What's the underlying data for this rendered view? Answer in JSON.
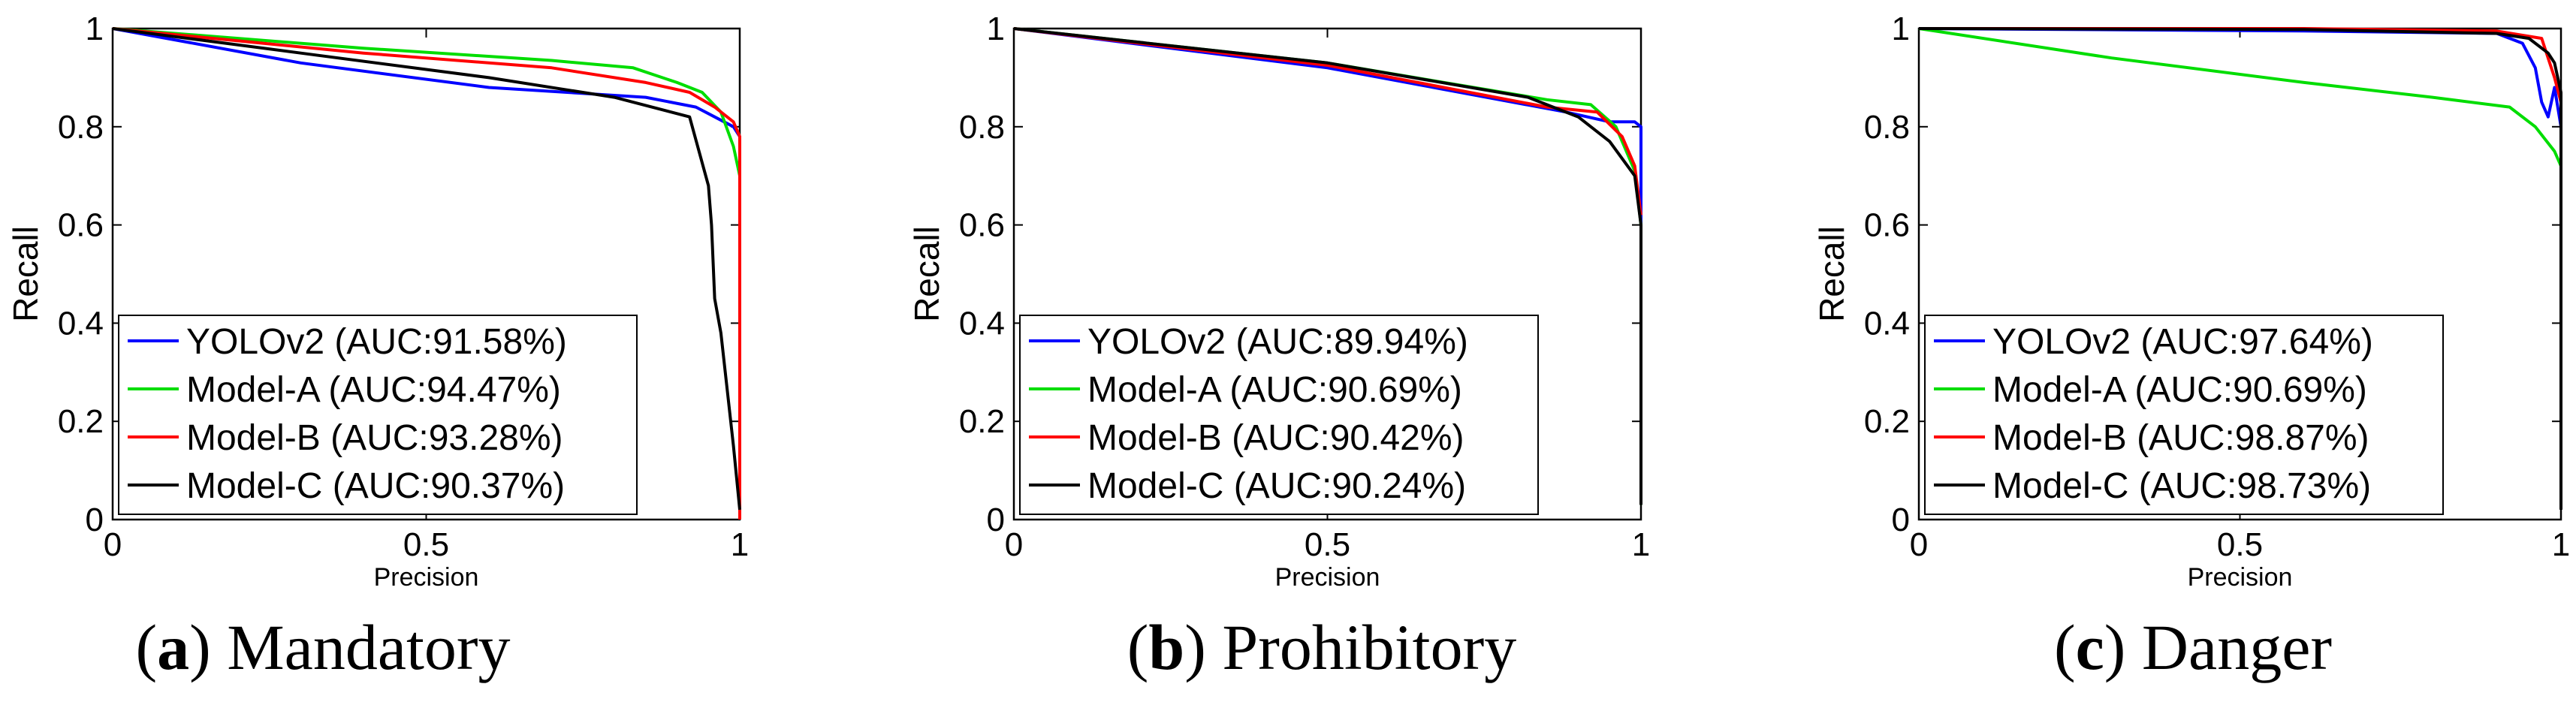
{
  "chart_data": [
    {
      "type": "line",
      "caption": {
        "letter": "a",
        "title": "Mandatory"
      },
      "xlabel": "Precision",
      "ylabel": "Recall",
      "xlim": [
        0,
        1
      ],
      "ylim": [
        0,
        1
      ],
      "xticks": [
        "0",
        "0.5",
        "1"
      ],
      "yticks": [
        "0",
        "0.2",
        "0.4",
        "0.6",
        "0.8",
        "1"
      ],
      "legend_position": "bottom-left",
      "series": [
        {
          "name": "YOLOv2 (AUC:91.58%)",
          "color": "#0000ff",
          "points": [
            [
              0,
              1
            ],
            [
              0.3,
              0.93
            ],
            [
              0.6,
              0.88
            ],
            [
              0.85,
              0.86
            ],
            [
              0.93,
              0.84
            ],
            [
              0.96,
              0.82
            ],
            [
              0.99,
              0.8
            ],
            [
              1,
              0.78
            ],
            [
              1,
              0.76
            ]
          ]
        },
        {
          "name": "Model-A (AUC:94.47%)",
          "color": "#00dd00",
          "points": [
            [
              0,
              1
            ],
            [
              0.4,
              0.96
            ],
            [
              0.7,
              0.935
            ],
            [
              0.83,
              0.92
            ],
            [
              0.9,
              0.89
            ],
            [
              0.94,
              0.87
            ],
            [
              0.97,
              0.83
            ],
            [
              0.99,
              0.76
            ],
            [
              1,
              0.7
            ],
            [
              1,
              0.64
            ]
          ]
        },
        {
          "name": "Model-B (AUC:93.28%)",
          "color": "#ff0000",
          "points": [
            [
              0,
              1
            ],
            [
              0.4,
              0.95
            ],
            [
              0.7,
              0.92
            ],
            [
              0.85,
              0.89
            ],
            [
              0.92,
              0.87
            ],
            [
              0.96,
              0.84
            ],
            [
              0.99,
              0.81
            ],
            [
              1,
              0.78
            ],
            [
              1,
              0.6
            ],
            [
              1,
              0
            ]
          ]
        },
        {
          "name": "Model-C (AUC:90.37%)",
          "color": "#000000",
          "points": [
            [
              0,
              1
            ],
            [
              0.3,
              0.95
            ],
            [
              0.6,
              0.9
            ],
            [
              0.8,
              0.86
            ],
            [
              0.92,
              0.82
            ],
            [
              0.95,
              0.68
            ],
            [
              0.955,
              0.6
            ],
            [
              0.96,
              0.45
            ],
            [
              0.97,
              0.38
            ],
            [
              0.99,
              0.15
            ],
            [
              1,
              0.02
            ]
          ]
        }
      ]
    },
    {
      "type": "line",
      "caption": {
        "letter": "b",
        "title": "Prohibitory"
      },
      "xlabel": "Precision",
      "ylabel": "Recall",
      "xlim": [
        0,
        1
      ],
      "ylim": [
        0,
        1
      ],
      "xticks": [
        "0",
        "0.5",
        "1"
      ],
      "yticks": [
        "0",
        "0.2",
        "0.4",
        "0.6",
        "0.8",
        "1"
      ],
      "legend_position": "bottom-left",
      "series": [
        {
          "name": "YOLOv2 (AUC:89.94%)",
          "color": "#0000ff",
          "points": [
            [
              0,
              1
            ],
            [
              0.5,
              0.92
            ],
            [
              0.88,
              0.83
            ],
            [
              0.95,
              0.81
            ],
            [
              0.99,
              0.81
            ],
            [
              1,
              0.8
            ],
            [
              1,
              0.55
            ]
          ]
        },
        {
          "name": "Model-A (AUC:90.69%)",
          "color": "#00dd00",
          "points": [
            [
              0,
              1
            ],
            [
              0.5,
              0.93
            ],
            [
              0.85,
              0.855
            ],
            [
              0.92,
              0.845
            ],
            [
              0.96,
              0.8
            ],
            [
              0.99,
              0.71
            ],
            [
              1,
              0.6
            ],
            [
              1,
              0.03
            ]
          ]
        },
        {
          "name": "Model-B (AUC:90.42%)",
          "color": "#ff0000",
          "points": [
            [
              0,
              1
            ],
            [
              0.5,
              0.925
            ],
            [
              0.85,
              0.84
            ],
            [
              0.93,
              0.83
            ],
            [
              0.97,
              0.78
            ],
            [
              0.99,
              0.72
            ],
            [
              1,
              0.62
            ]
          ]
        },
        {
          "name": "Model-C (AUC:90.24%)",
          "color": "#000000",
          "points": [
            [
              0,
              1
            ],
            [
              0.5,
              0.93
            ],
            [
              0.82,
              0.86
            ],
            [
              0.9,
              0.82
            ],
            [
              0.95,
              0.77
            ],
            [
              0.99,
              0.7
            ],
            [
              1,
              0.6
            ],
            [
              1,
              0.03
            ]
          ]
        }
      ]
    },
    {
      "type": "line",
      "caption": {
        "letter": "c",
        "title": "Danger"
      },
      "xlabel": "Precision",
      "ylabel": "Recall",
      "xlim": [
        0,
        1
      ],
      "ylim": [
        0,
        1
      ],
      "xticks": [
        "0",
        "0.5",
        "1"
      ],
      "yticks": [
        "0",
        "0.2",
        "0.4",
        "0.6",
        "0.8",
        "1"
      ],
      "legend_position": "bottom-left",
      "series": [
        {
          "name": "YOLOv2 (AUC:97.64%)",
          "color": "#0000ff",
          "points": [
            [
              0,
              1
            ],
            [
              0.6,
              0.995
            ],
            [
              0.9,
              0.99
            ],
            [
              0.94,
              0.97
            ],
            [
              0.96,
              0.92
            ],
            [
              0.97,
              0.85
            ],
            [
              0.98,
              0.82
            ],
            [
              0.99,
              0.88
            ],
            [
              1,
              0.8
            ],
            [
              1,
              0.4
            ]
          ]
        },
        {
          "name": "Model-A (AUC:90.69%)",
          "color": "#00dd00",
          "points": [
            [
              0,
              1
            ],
            [
              0.3,
              0.94
            ],
            [
              0.6,
              0.89
            ],
            [
              0.8,
              0.86
            ],
            [
              0.92,
              0.84
            ],
            [
              0.96,
              0.8
            ],
            [
              0.99,
              0.75
            ],
            [
              1,
              0.72
            ]
          ]
        },
        {
          "name": "Model-B (AUC:98.87%)",
          "color": "#ff0000",
          "points": [
            [
              0,
              1
            ],
            [
              0.6,
              1
            ],
            [
              0.9,
              0.995
            ],
            [
              0.97,
              0.98
            ],
            [
              0.99,
              0.9
            ],
            [
              1,
              0.85
            ],
            [
              1,
              0.7
            ]
          ]
        },
        {
          "name": "Model-C (AUC:98.73%)",
          "color": "#000000",
          "points": [
            [
              0,
              1
            ],
            [
              0.6,
              0.998
            ],
            [
              0.9,
              0.99
            ],
            [
              0.95,
              0.98
            ],
            [
              0.98,
              0.95
            ],
            [
              0.99,
              0.93
            ],
            [
              1,
              0.87
            ],
            [
              1,
              0.02
            ]
          ]
        }
      ]
    }
  ]
}
